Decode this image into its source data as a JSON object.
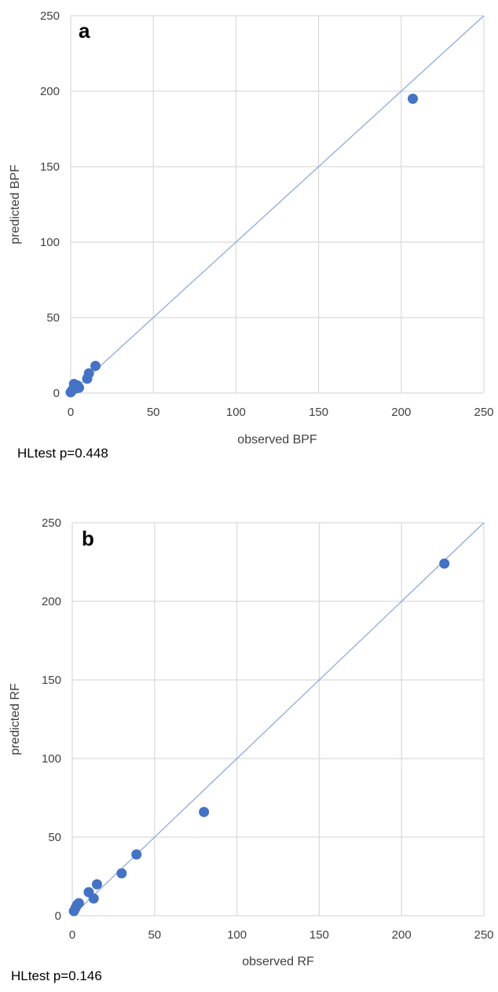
{
  "colors": {
    "grid": "#d9d9d9",
    "reference_line": "#8eaadb",
    "points": "#4472c4"
  },
  "chart_data": [
    {
      "type": "scatter",
      "panel_label": "a",
      "xlabel": "observed BPF",
      "ylabel": "predicted BPF",
      "xlim": [
        0,
        250
      ],
      "ylim": [
        0,
        250
      ],
      "xticks": [
        0,
        50,
        100,
        150,
        200,
        250
      ],
      "yticks": [
        0,
        50,
        100,
        150,
        200,
        250
      ],
      "grid": true,
      "reference_line": {
        "from": [
          0,
          0
        ],
        "to": [
          250,
          250
        ]
      },
      "points": [
        {
          "x": 0,
          "y": 0.5
        },
        {
          "x": 1,
          "y": 2
        },
        {
          "x": 2,
          "y": 6
        },
        {
          "x": 3,
          "y": 3
        },
        {
          "x": 4,
          "y": 5
        },
        {
          "x": 5,
          "y": 3.5
        },
        {
          "x": 10,
          "y": 9.5
        },
        {
          "x": 11,
          "y": 13
        },
        {
          "x": 15,
          "y": 18
        },
        {
          "x": 207,
          "y": 195
        }
      ],
      "annotation": "HLtest p=0.448"
    },
    {
      "type": "scatter",
      "panel_label": "b",
      "xlabel": "observed RF",
      "ylabel": "predicted RF",
      "xlim": [
        0,
        250
      ],
      "ylim": [
        0,
        250
      ],
      "xticks": [
        0,
        50,
        100,
        150,
        200,
        250
      ],
      "yticks": [
        0,
        50,
        100,
        150,
        200,
        250
      ],
      "grid": true,
      "reference_line": {
        "from": [
          0,
          0
        ],
        "to": [
          250,
          250
        ]
      },
      "points": [
        {
          "x": 1,
          "y": 3
        },
        {
          "x": 2,
          "y": 5
        },
        {
          "x": 3,
          "y": 7
        },
        {
          "x": 4,
          "y": 8
        },
        {
          "x": 10,
          "y": 15
        },
        {
          "x": 13,
          "y": 11
        },
        {
          "x": 15,
          "y": 20
        },
        {
          "x": 30,
          "y": 27
        },
        {
          "x": 39,
          "y": 39
        },
        {
          "x": 80,
          "y": 66
        },
        {
          "x": 226,
          "y": 224
        }
      ],
      "annotation": "HLtest p=0.146"
    }
  ]
}
